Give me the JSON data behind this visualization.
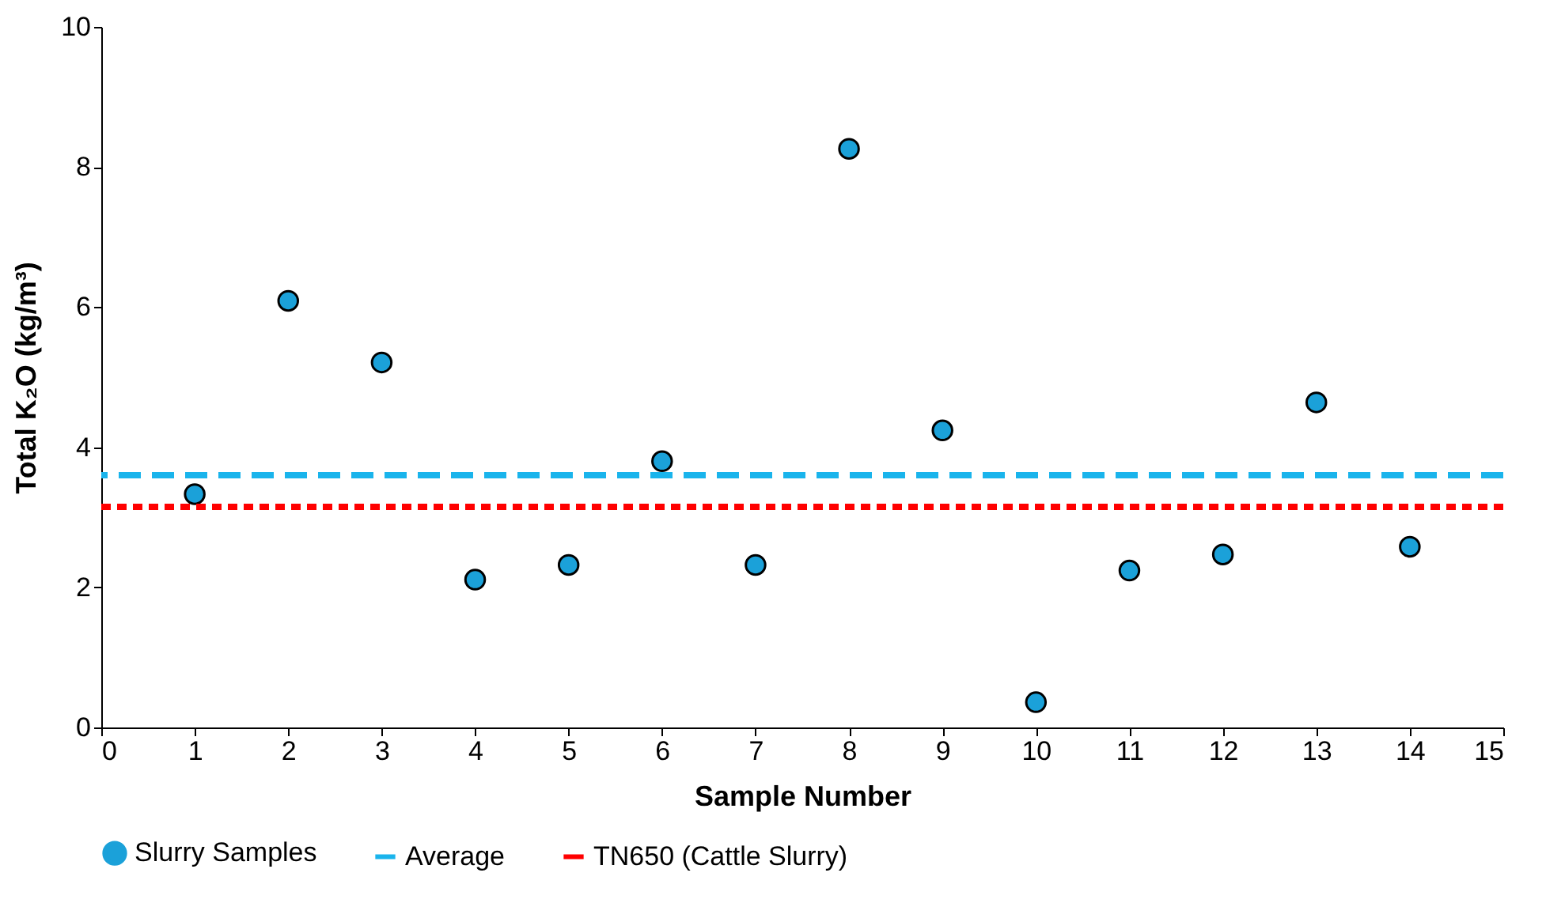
{
  "chart_data": {
    "type": "scatter",
    "xlabel": "Sample Number",
    "ylabel": "Total K₂O (kg/m³)",
    "xlim": [
      0,
      15
    ],
    "xticks": [
      0,
      1,
      2,
      3,
      4,
      5,
      6,
      7,
      8,
      9,
      10,
      11,
      12,
      13,
      14,
      15
    ],
    "ylim": [
      0,
      10
    ],
    "yticks": [
      0,
      2,
      4,
      6,
      8,
      10
    ],
    "grid": false,
    "legend": "bottom",
    "x": [
      1,
      2,
      3,
      4,
      5,
      6,
      7,
      8,
      9,
      10,
      11,
      12,
      13,
      14
    ],
    "series": [
      {
        "name": "Slurry Samples",
        "color": "#1ba1d9",
        "marker": "circle",
        "values": [
          3.33,
          6.09,
          5.21,
          2.11,
          2.32,
          3.8,
          2.32,
          8.26,
          4.24,
          0.36,
          2.24,
          2.47,
          4.64,
          2.58
        ]
      }
    ],
    "ref_lines": [
      {
        "axis": "y",
        "value": 3.6,
        "label": "Average",
        "color": "#1ab4ec",
        "line_style": "dashed"
      },
      {
        "axis": "y",
        "value": 3.15,
        "label": "TN650 (Cattle Slurry)",
        "color": "#ff0000",
        "line_style": "dotted"
      }
    ]
  }
}
